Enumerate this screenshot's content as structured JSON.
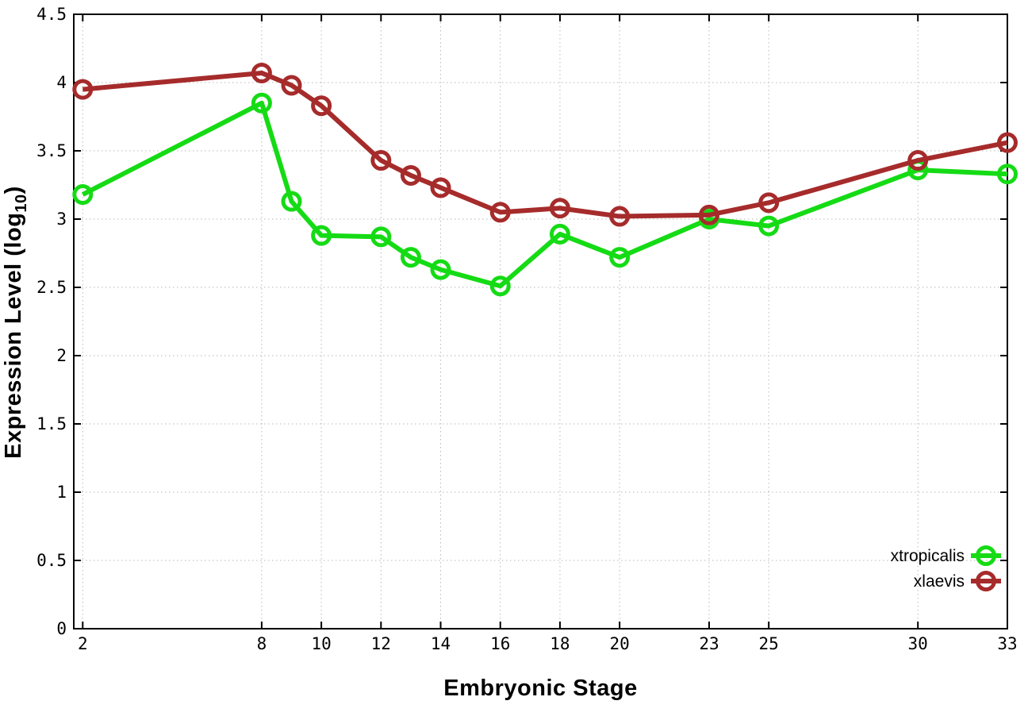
{
  "chart_data": {
    "type": "line",
    "title": "",
    "xlabel": "Embryonic Stage",
    "ylabel_prefix": "Expression Level (log",
    "ylabel_sub": "10",
    "ylabel_suffix": ")",
    "x": [
      2,
      8,
      9,
      10,
      12,
      13,
      14,
      16,
      18,
      20,
      23,
      25,
      30,
      33
    ],
    "series": [
      {
        "name": "xtropicalis",
        "color": "#15DB15",
        "values": [
          3.18,
          3.85,
          3.13,
          2.88,
          2.87,
          2.72,
          2.63,
          2.51,
          2.89,
          2.72,
          3.0,
          2.95,
          3.36,
          3.33
        ]
      },
      {
        "name": "xlaevis",
        "color": "#A62B2B",
        "values": [
          3.95,
          4.07,
          3.98,
          3.83,
          3.43,
          3.32,
          3.23,
          3.05,
          3.08,
          3.02,
          3.03,
          3.12,
          3.43,
          3.56
        ]
      }
    ],
    "xticks": {
      "values": [
        2,
        8,
        10,
        12,
        14,
        16,
        18,
        20,
        23,
        25,
        30,
        33
      ],
      "labels": [
        "2",
        "8",
        "10",
        "12",
        "14",
        "16",
        "18",
        "20",
        "23",
        "25",
        "30",
        "33"
      ]
    },
    "yticks": {
      "values": [
        0,
        0.5,
        1,
        1.5,
        2,
        2.5,
        3,
        3.5,
        4,
        4.5
      ],
      "labels": [
        "0",
        "0.5",
        "1",
        "1.5",
        "2",
        "2.5",
        "3",
        "3.5",
        "4",
        "4.5"
      ]
    },
    "xlim": [
      1.7,
      33
    ],
    "ylim": [
      0,
      4.5
    ],
    "grid": true,
    "legend_position": "bottom-right",
    "colors": {
      "background": "#ffffff",
      "border": "#000000",
      "grid": "#b8b8b8",
      "text": "#000000"
    }
  }
}
